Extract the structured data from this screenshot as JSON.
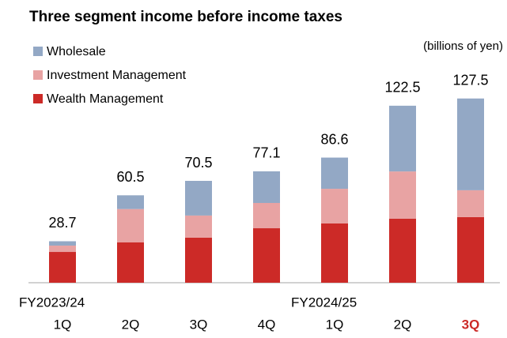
{
  "chart_data": {
    "type": "stacked_bar",
    "title": "Three segment income before income taxes",
    "unit_label": "(billions of yen)",
    "categories": [
      "1Q",
      "2Q",
      "3Q",
      "4Q",
      "1Q",
      "2Q",
      "3Q"
    ],
    "category_groups": [
      "FY2023/24",
      null,
      null,
      null,
      "FY2024/25",
      null,
      null
    ],
    "highlight_index": 6,
    "highlight_color": "#cc2a27",
    "series": [
      {
        "name": "Wealth Management",
        "color": "#cc2a27",
        "values": [
          21.3,
          28.0,
          31.2,
          37.7,
          41.0,
          44.3,
          45.4
        ]
      },
      {
        "name": "Investment Management",
        "color": "#e8a3a3",
        "values": [
          4.4,
          23.0,
          15.3,
          17.5,
          24.0,
          32.7,
          18.6
        ]
      },
      {
        "name": "Wholesale",
        "color": "#93a8c5",
        "values": [
          3.0,
          9.5,
          24.0,
          21.9,
          21.6,
          45.5,
          63.5
        ]
      }
    ],
    "totals": [
      28.7,
      60.5,
      70.5,
      77.1,
      86.6,
      122.5,
      127.5
    ],
    "ylim": [
      0,
      135
    ]
  }
}
